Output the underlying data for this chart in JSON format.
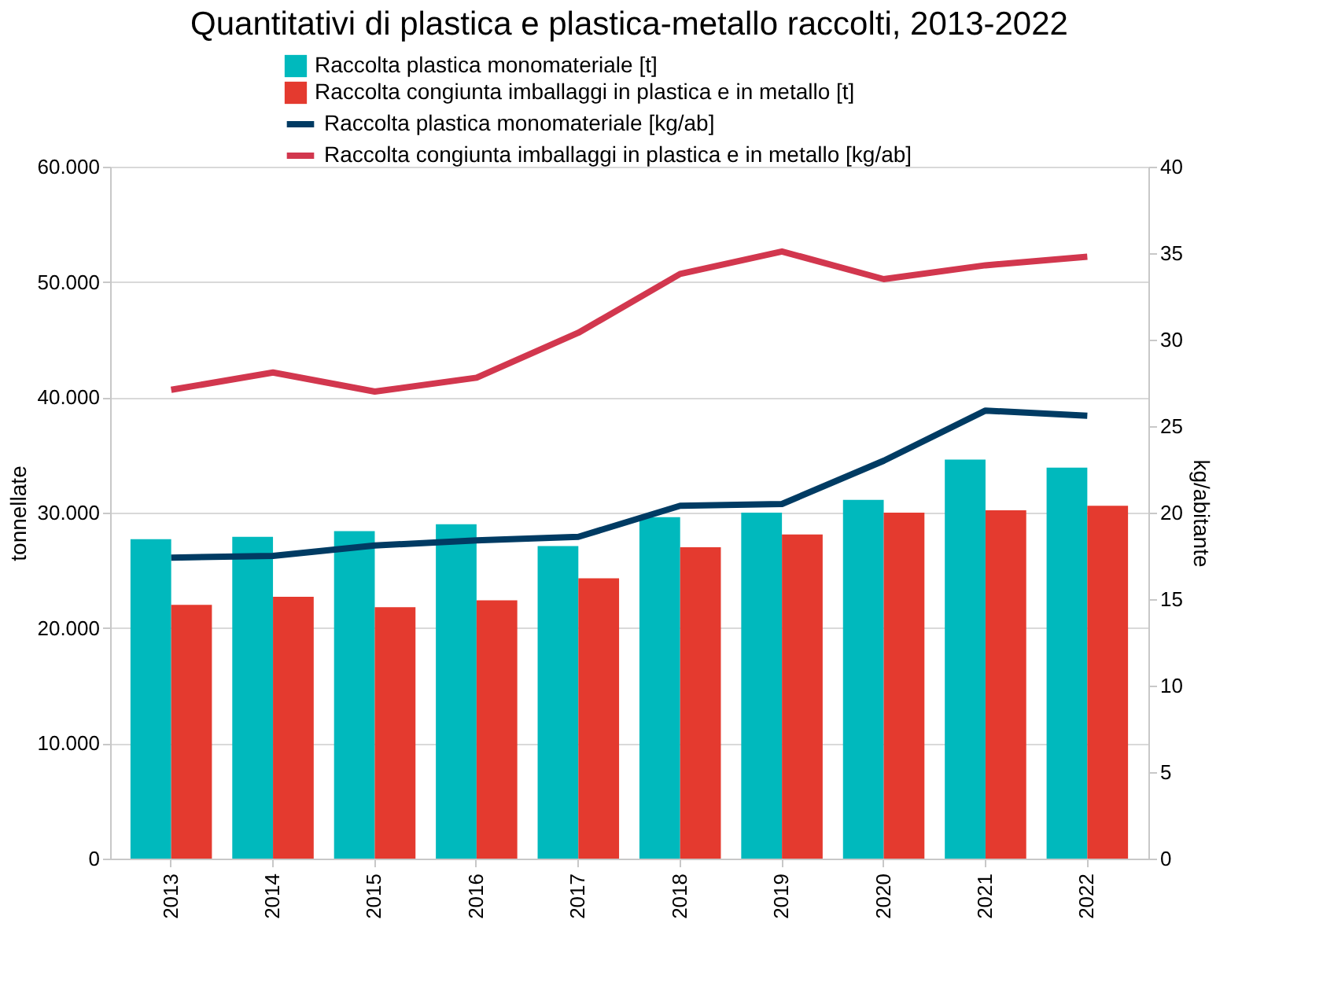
{
  "chart_data": {
    "type": "bar",
    "title": "Quantitativi di plastica e plastica-metallo raccolti, 2013-2022",
    "categories": [
      "2013",
      "2014",
      "2015",
      "2016",
      "2017",
      "2018",
      "2019",
      "2020",
      "2021",
      "2022"
    ],
    "ylabel": "tonnellate",
    "y2label": "kg/abitante",
    "ylim": [
      0,
      60000
    ],
    "yticks": [
      {
        "value": 0,
        "label": "0"
      },
      {
        "value": 10000,
        "label": "10.000"
      },
      {
        "value": 20000,
        "label": "20.000"
      },
      {
        "value": 30000,
        "label": "30.000"
      },
      {
        "value": 40000,
        "label": "40.000"
      },
      {
        "value": 50000,
        "label": "50.000"
      },
      {
        "value": 60000,
        "label": "60.000"
      }
    ],
    "y2lim": [
      0,
      40
    ],
    "y2ticks": [
      0,
      5,
      10,
      15,
      20,
      25,
      30,
      35,
      40
    ],
    "grid": "y",
    "legend": "top",
    "series": [
      {
        "name": "Raccolta plastica monomateriale [t]",
        "color": "#00b9bd",
        "values": [
          27700,
          27900,
          28400,
          29000,
          27100,
          29600,
          30000,
          31100,
          34600,
          33900
        ]
      },
      {
        "name": "Raccolta congiunta imballaggi in plastica e in metallo [t]",
        "color": "#e43a2f",
        "values": [
          22000,
          22700,
          21800,
          22400,
          24300,
          27000,
          28100,
          30000,
          30200,
          30600
        ]
      },
      {
        "name": "Raccolta plastica monomateriale [kg/ab]",
        "type": "line",
        "axis": "y2",
        "color": "#003b63",
        "values": [
          17.4,
          17.5,
          18.1,
          18.4,
          18.6,
          20.4,
          20.5,
          23.0,
          25.9,
          25.6
        ]
      },
      {
        "name": "Raccolta congiunta imballaggi in plastica e in metallo [kg/ab]",
        "type": "line",
        "axis": "y2",
        "color": "#d2374e",
        "values": [
          27.1,
          28.1,
          27.0,
          27.8,
          30.4,
          33.8,
          35.1,
          33.5,
          34.3,
          34.8
        ]
      }
    ]
  }
}
